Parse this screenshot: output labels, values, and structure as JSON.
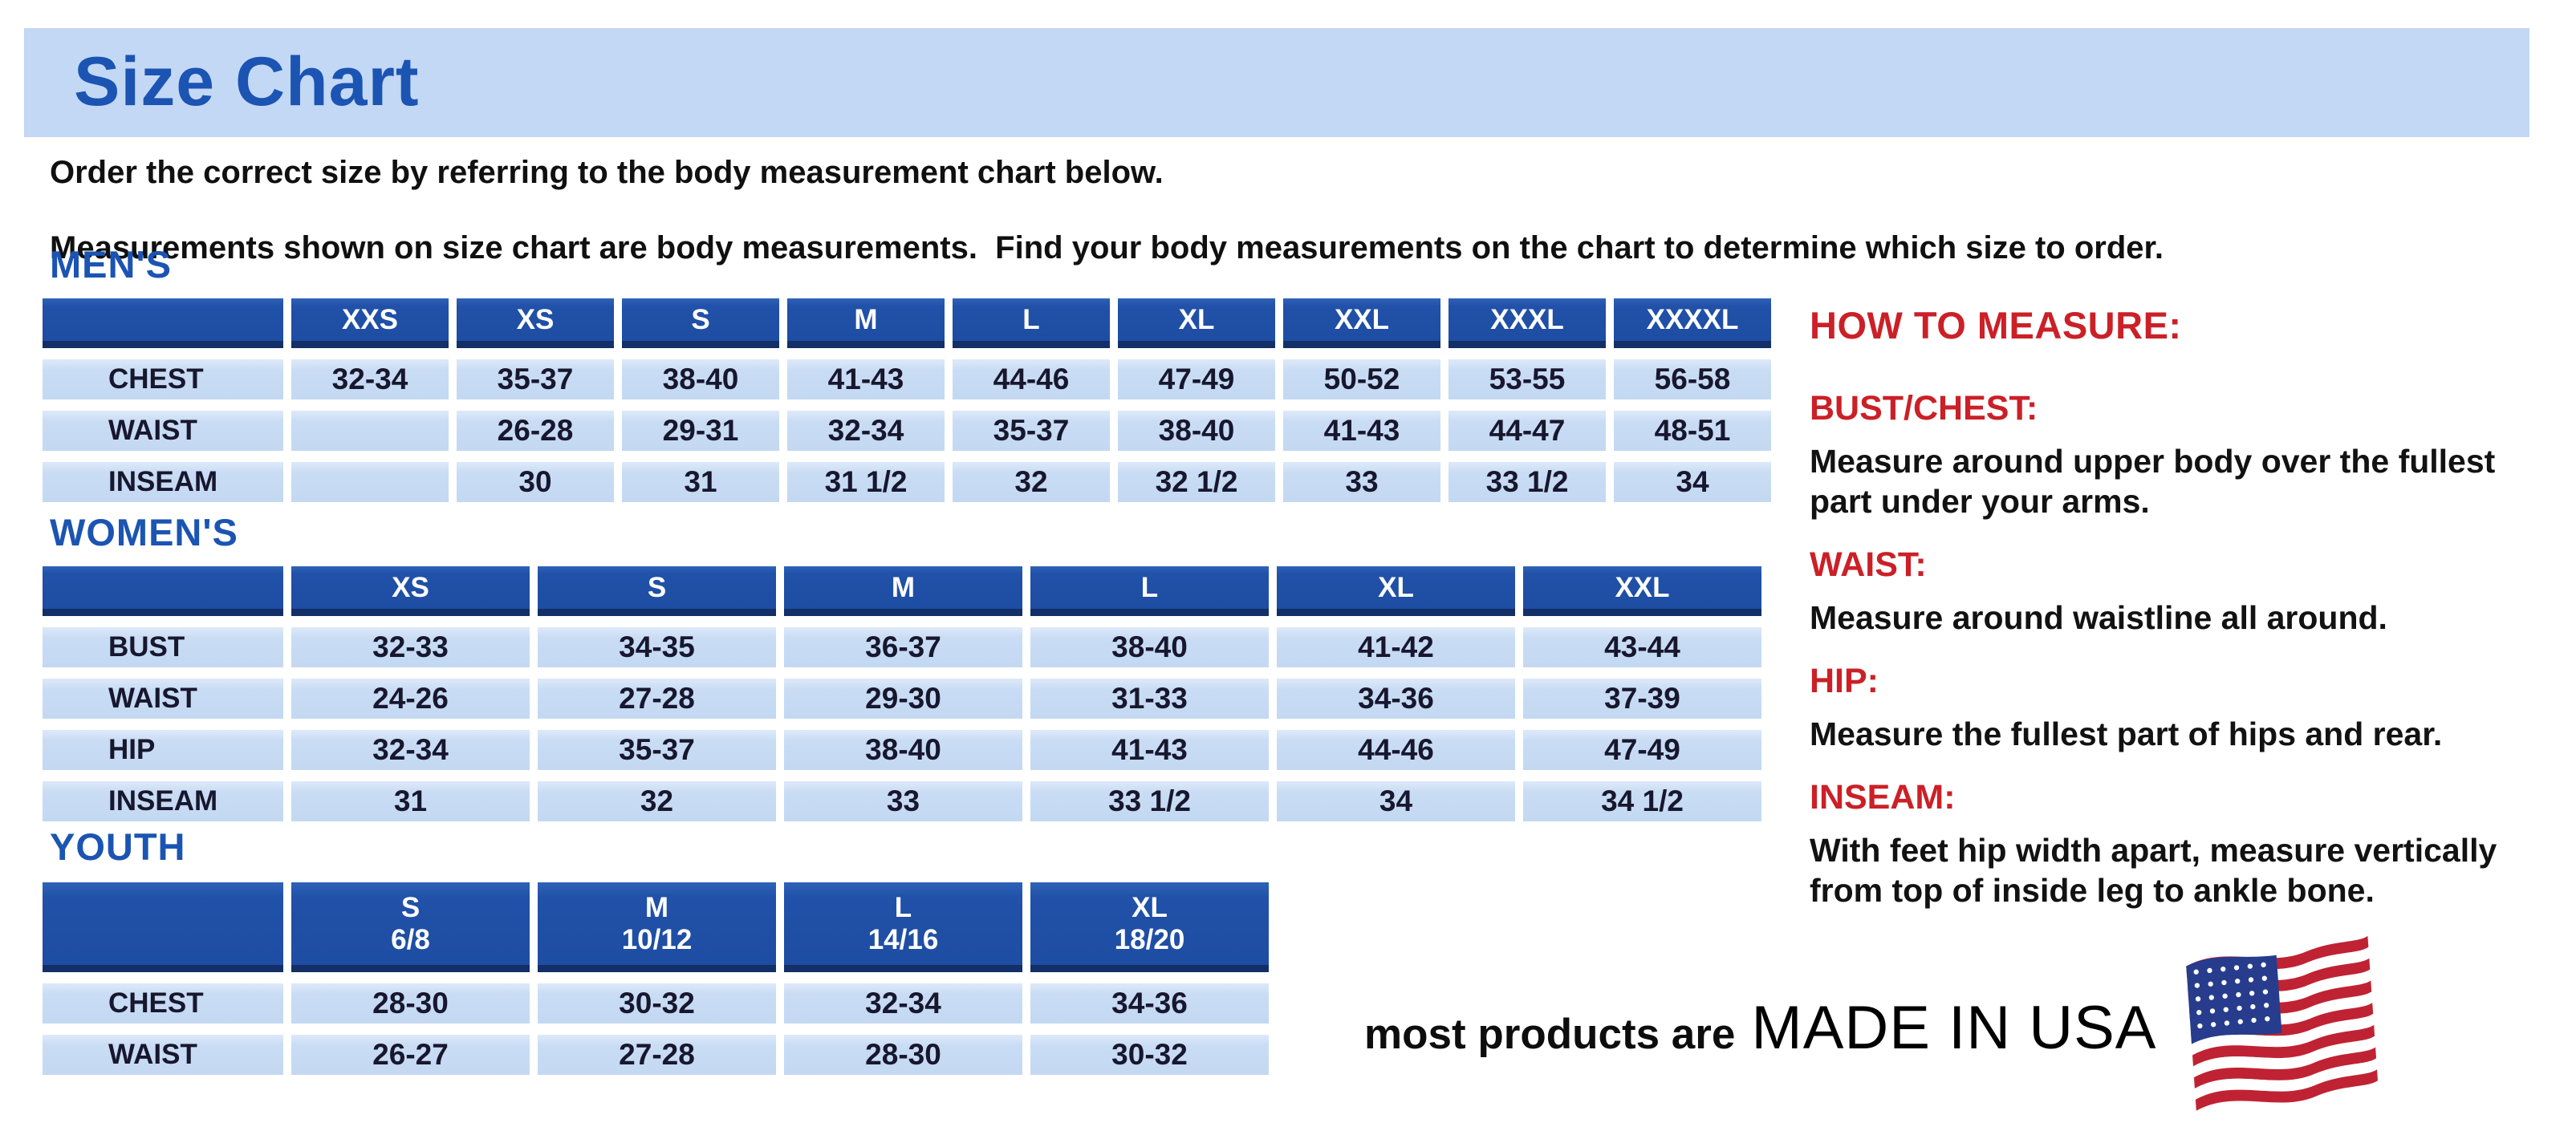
{
  "title": "Size Chart",
  "intro": {
    "line1": "Order the correct size by referring to the body measurement chart below.",
    "line2": "Measurements shown on size chart are body measurements.  Find your body measurements on the chart to determine which size to order."
  },
  "tables": {
    "mens": {
      "heading": "MEN'S",
      "columns": [
        "XXS",
        "XS",
        "S",
        "M",
        "L",
        "XL",
        "XXL",
        "XXXL",
        "XXXXL"
      ],
      "rows": [
        {
          "label": "CHEST",
          "values": [
            "32-34",
            "35-37",
            "38-40",
            "41-43",
            "44-46",
            "47-49",
            "50-52",
            "53-55",
            "56-58"
          ]
        },
        {
          "label": "WAIST",
          "values": [
            "",
            "26-28",
            "29-31",
            "32-34",
            "35-37",
            "38-40",
            "41-43",
            "44-47",
            "48-51"
          ]
        },
        {
          "label": "INSEAM",
          "values": [
            "",
            "30",
            "31",
            "31 1/2",
            "32",
            "32 1/2",
            "33",
            "33 1/2",
            "34"
          ]
        }
      ]
    },
    "womens": {
      "heading": "WOMEN'S",
      "columns": [
        "XS",
        "S",
        "M",
        "L",
        "XL",
        "XXL"
      ],
      "rows": [
        {
          "label": "BUST",
          "values": [
            "32-33",
            "34-35",
            "36-37",
            "38-40",
            "41-42",
            "43-44"
          ]
        },
        {
          "label": "WAIST",
          "values": [
            "24-26",
            "27-28",
            "29-30",
            "31-33",
            "34-36",
            "37-39"
          ]
        },
        {
          "label": "HIP",
          "values": [
            "32-34",
            "35-37",
            "38-40",
            "41-43",
            "44-46",
            "47-49"
          ]
        },
        {
          "label": "INSEAM",
          "values": [
            "31",
            "32",
            "33",
            "33 1/2",
            "34",
            "34 1/2"
          ]
        }
      ]
    },
    "youth": {
      "heading": "YOUTH",
      "columns": [
        {
          "size": "S",
          "range": "6/8"
        },
        {
          "size": "M",
          "range": "10/12"
        },
        {
          "size": "L",
          "range": "14/16"
        },
        {
          "size": "XL",
          "range": "18/20"
        }
      ],
      "rows": [
        {
          "label": "CHEST",
          "values": [
            "28-30",
            "30-32",
            "32-34",
            "34-36"
          ]
        },
        {
          "label": "WAIST",
          "values": [
            "26-27",
            "27-28",
            "28-30",
            "30-32"
          ]
        }
      ]
    }
  },
  "how_to_measure": {
    "heading": "HOW TO MEASURE:",
    "items": [
      {
        "label": "BUST/CHEST:",
        "text": "Measure around upper body over the fullest part under your arms."
      },
      {
        "label": "WAIST:",
        "text": "Measure around waistline all around."
      },
      {
        "label": "HIP:",
        "text": "Measure the fullest part of hips and rear."
      },
      {
        "label": "INSEAM:",
        "text": "With feet hip width apart, measure vertically from top of inside leg to ankle bone."
      }
    ]
  },
  "footer": {
    "prefix": "most products are",
    "emphasis": "MADE IN USA",
    "flag_icon": "us-flag-icon"
  },
  "colors": {
    "banner_bg": "#c3d8f4",
    "heading_blue": "#1b54b2",
    "table_header_bg": "#2151a8",
    "table_header_border": "#122f68",
    "table_row_bg": "#c9dcf4",
    "accent_red": "#cb2027",
    "flag_red": "#bf2333",
    "flag_blue": "#273c8c",
    "text_dark": "#17172e"
  }
}
